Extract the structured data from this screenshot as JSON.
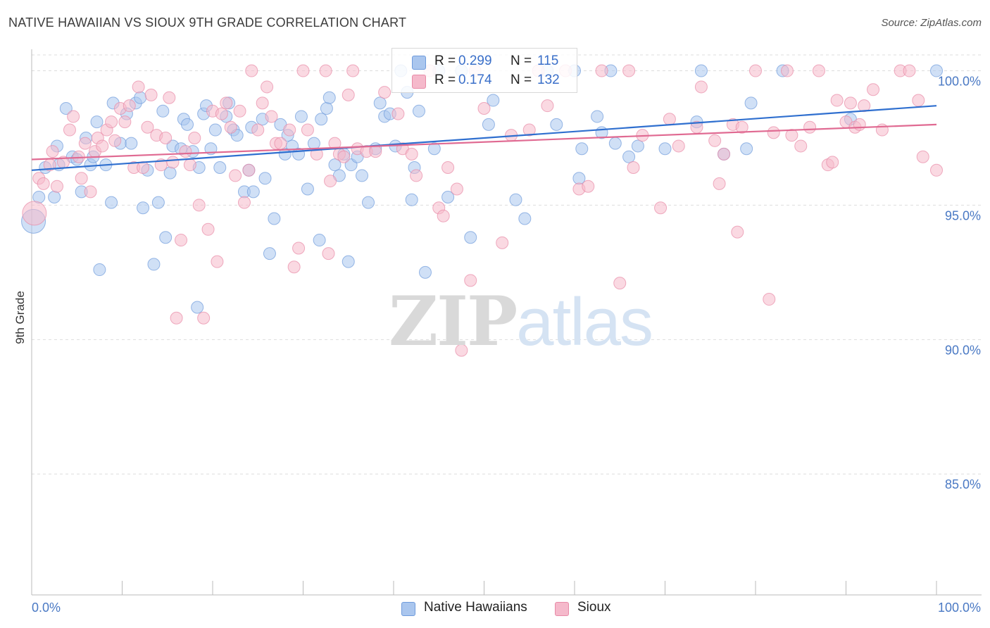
{
  "header": {
    "title": "NATIVE HAWAIIAN VS SIOUX 9TH GRADE CORRELATION CHART",
    "source": "Source: ZipAtlas.com"
  },
  "watermark": {
    "zip": "ZIP",
    "atlas": "atlas"
  },
  "legend": {
    "rows": [
      {
        "r_label": "R =",
        "r_value": "0.299",
        "n_label": "N =",
        "n_value": "115"
      },
      {
        "r_label": "R =",
        "r_value": "0.174",
        "n_label": "N =",
        "n_value": "132"
      }
    ]
  },
  "bottom_legend": {
    "items": [
      "Native Hawaiians",
      "Sioux"
    ]
  },
  "colors": {
    "blue_fill": "#aac6ee",
    "blue_stroke": "#6f9bdc",
    "blue_line": "#2f6fcf",
    "pink_fill": "#f5b9cb",
    "pink_stroke": "#e88aa7",
    "pink_line": "#e06a92",
    "grid": "#dddddd",
    "tick_text": "#4a79c4"
  },
  "chart_data": {
    "type": "scatter",
    "title": "NATIVE HAWAIIAN VS SIOUX 9TH GRADE CORRELATION CHART",
    "xlabel": "",
    "ylabel": "9th Grade",
    "xlim": [
      0,
      100
    ],
    "ylim": [
      80.5,
      100.8
    ],
    "x_tick_labels": [
      "0.0%",
      "100.0%"
    ],
    "y_ticks": [
      85,
      90,
      95,
      100
    ],
    "y_tick_labels": [
      "85.0%",
      "90.0%",
      "95.0%",
      "100.0%"
    ],
    "grid": true,
    "series": [
      {
        "name": "Native Hawaiians",
        "R": 0.299,
        "N": 115,
        "trend": [
          [
            0,
            96.3
          ],
          [
            100,
            98.7
          ]
        ],
        "points": [
          [
            0.2,
            94.4
          ],
          [
            0.8,
            95.3
          ],
          [
            1.5,
            96.4
          ],
          [
            2.5,
            95.3
          ],
          [
            2.8,
            97.2
          ],
          [
            3.0,
            96.5
          ],
          [
            3.8,
            98.6
          ],
          [
            4.5,
            96.8
          ],
          [
            5.0,
            96.7
          ],
          [
            5.5,
            95.5
          ],
          [
            6.0,
            97.5
          ],
          [
            6.5,
            96.5
          ],
          [
            6.8,
            96.8
          ],
          [
            7.2,
            98.1
          ],
          [
            7.5,
            92.6
          ],
          [
            8.2,
            96.5
          ],
          [
            8.8,
            95.1
          ],
          [
            9.0,
            98.8
          ],
          [
            9.8,
            97.3
          ],
          [
            10.5,
            98.4
          ],
          [
            11.0,
            97.3
          ],
          [
            11.5,
            98.8
          ],
          [
            12.0,
            99.0
          ],
          [
            12.3,
            94.9
          ],
          [
            12.8,
            96.3
          ],
          [
            13.5,
            92.8
          ],
          [
            14.0,
            95.1
          ],
          [
            14.5,
            98.5
          ],
          [
            14.8,
            93.8
          ],
          [
            15.3,
            96.2
          ],
          [
            15.6,
            97.2
          ],
          [
            16.5,
            97.1
          ],
          [
            16.8,
            98.2
          ],
          [
            17.2,
            98.0
          ],
          [
            17.8,
            97.0
          ],
          [
            18.3,
            91.2
          ],
          [
            18.5,
            96.4
          ],
          [
            19.0,
            98.4
          ],
          [
            19.3,
            98.7
          ],
          [
            19.8,
            97.1
          ],
          [
            20.3,
            97.8
          ],
          [
            20.8,
            96.4
          ],
          [
            21.5,
            98.3
          ],
          [
            21.8,
            98.8
          ],
          [
            22.3,
            97.8
          ],
          [
            22.7,
            97.6
          ],
          [
            23.5,
            95.5
          ],
          [
            24.0,
            96.3
          ],
          [
            24.3,
            97.9
          ],
          [
            24.5,
            95.5
          ],
          [
            25.5,
            98.2
          ],
          [
            25.8,
            96.0
          ],
          [
            26.3,
            93.2
          ],
          [
            26.8,
            94.5
          ],
          [
            27.5,
            98.0
          ],
          [
            28.0,
            96.9
          ],
          [
            28.3,
            97.6
          ],
          [
            28.8,
            97.2
          ],
          [
            29.5,
            96.9
          ],
          [
            29.8,
            98.3
          ],
          [
            30.5,
            95.6
          ],
          [
            31.2,
            97.3
          ],
          [
            31.8,
            93.7
          ],
          [
            32.0,
            98.2
          ],
          [
            32.6,
            98.6
          ],
          [
            32.9,
            99.0
          ],
          [
            33.5,
            96.5
          ],
          [
            34.0,
            96.1
          ],
          [
            34.5,
            96.9
          ],
          [
            35.0,
            92.9
          ],
          [
            35.3,
            96.5
          ],
          [
            36.0,
            96.8
          ],
          [
            36.5,
            96.1
          ],
          [
            37.2,
            95.1
          ],
          [
            38.0,
            97.1
          ],
          [
            38.5,
            98.8
          ],
          [
            39.0,
            98.3
          ],
          [
            39.6,
            98.4
          ],
          [
            40.2,
            97.2
          ],
          [
            40.8,
            100.0
          ],
          [
            41.5,
            99.2
          ],
          [
            42.0,
            95.2
          ],
          [
            42.3,
            96.4
          ],
          [
            42.8,
            98.5
          ],
          [
            43.5,
            92.5
          ],
          [
            44.5,
            97.1
          ],
          [
            45.0,
            100.0
          ],
          [
            46.0,
            95.3
          ],
          [
            47.5,
            100.0
          ],
          [
            48.5,
            93.8
          ],
          [
            50.5,
            98.0
          ],
          [
            51.0,
            98.9
          ],
          [
            53.5,
            95.2
          ],
          [
            54.5,
            94.5
          ],
          [
            57.0,
            100.0
          ],
          [
            58.0,
            98.0
          ],
          [
            60.0,
            100.0
          ],
          [
            60.5,
            96.0
          ],
          [
            60.8,
            97.1
          ],
          [
            62.5,
            98.3
          ],
          [
            63.0,
            97.7
          ],
          [
            64.0,
            100.0
          ],
          [
            64.5,
            97.3
          ],
          [
            66.0,
            96.8
          ],
          [
            67.0,
            97.2
          ],
          [
            70.0,
            97.1
          ],
          [
            73.5,
            98.1
          ],
          [
            74.0,
            100.0
          ],
          [
            76.5,
            96.9
          ],
          [
            79.0,
            97.1
          ],
          [
            79.5,
            98.8
          ],
          [
            83.0,
            100.0
          ],
          [
            90.5,
            98.2
          ],
          [
            100.0,
            100.0
          ]
        ]
      },
      {
        "name": "Sioux",
        "R": 0.174,
        "N": 132,
        "trend": [
          [
            0,
            96.7
          ],
          [
            100,
            98.0
          ]
        ],
        "points": [
          [
            0.3,
            94.7
          ],
          [
            0.8,
            96.0
          ],
          [
            1.3,
            95.8
          ],
          [
            2.0,
            96.5
          ],
          [
            2.3,
            97.0
          ],
          [
            2.8,
            95.7
          ],
          [
            3.5,
            96.6
          ],
          [
            4.2,
            97.8
          ],
          [
            4.6,
            98.3
          ],
          [
            5.2,
            96.8
          ],
          [
            5.5,
            96.0
          ],
          [
            5.9,
            97.3
          ],
          [
            6.5,
            95.5
          ],
          [
            7.0,
            97.0
          ],
          [
            7.3,
            97.5
          ],
          [
            7.8,
            97.2
          ],
          [
            8.3,
            97.8
          ],
          [
            8.8,
            98.1
          ],
          [
            9.2,
            97.4
          ],
          [
            9.8,
            98.6
          ],
          [
            10.3,
            98.1
          ],
          [
            10.8,
            98.7
          ],
          [
            11.3,
            96.4
          ],
          [
            11.8,
            99.4
          ],
          [
            12.3,
            96.4
          ],
          [
            12.8,
            97.9
          ],
          [
            13.2,
            99.1
          ],
          [
            13.8,
            97.6
          ],
          [
            14.3,
            96.5
          ],
          [
            14.8,
            97.5
          ],
          [
            15.2,
            99.0
          ],
          [
            15.6,
            96.6
          ],
          [
            16.0,
            90.8
          ],
          [
            16.5,
            93.7
          ],
          [
            17.0,
            97.0
          ],
          [
            17.5,
            96.5
          ],
          [
            18.0,
            97.5
          ],
          [
            18.5,
            95.0
          ],
          [
            19.0,
            90.8
          ],
          [
            19.5,
            94.1
          ],
          [
            20.0,
            98.5
          ],
          [
            20.5,
            92.9
          ],
          [
            21.0,
            98.4
          ],
          [
            21.5,
            98.8
          ],
          [
            22.0,
            97.9
          ],
          [
            22.5,
            96.1
          ],
          [
            23.0,
            98.5
          ],
          [
            23.5,
            95.1
          ],
          [
            24.0,
            96.3
          ],
          [
            24.3,
            100.0
          ],
          [
            25.0,
            97.8
          ],
          [
            25.5,
            98.8
          ],
          [
            26.0,
            99.4
          ],
          [
            26.5,
            98.3
          ],
          [
            27.0,
            97.3
          ],
          [
            27.5,
            97.3
          ],
          [
            28.5,
            97.8
          ],
          [
            29.0,
            92.7
          ],
          [
            29.5,
            93.4
          ],
          [
            30.0,
            100.0
          ],
          [
            30.5,
            97.8
          ],
          [
            31.5,
            96.9
          ],
          [
            32.5,
            100.0
          ],
          [
            32.8,
            93.2
          ],
          [
            33.0,
            95.9
          ],
          [
            33.5,
            97.3
          ],
          [
            34.0,
            96.9
          ],
          [
            34.5,
            96.8
          ],
          [
            35.0,
            99.1
          ],
          [
            35.5,
            100.0
          ],
          [
            36.0,
            97.1
          ],
          [
            37.0,
            97.0
          ],
          [
            38.0,
            97.0
          ],
          [
            39.0,
            99.2
          ],
          [
            40.5,
            98.4
          ],
          [
            41.0,
            97.1
          ],
          [
            42.0,
            96.9
          ],
          [
            42.5,
            96.1
          ],
          [
            44.0,
            100.0
          ],
          [
            45.0,
            94.9
          ],
          [
            45.5,
            94.6
          ],
          [
            46.0,
            96.4
          ],
          [
            47.0,
            95.6
          ],
          [
            47.5,
            89.6
          ],
          [
            48.5,
            92.2
          ],
          [
            49.0,
            100.0
          ],
          [
            50.0,
            98.6
          ],
          [
            52.0,
            93.6
          ],
          [
            53.0,
            97.6
          ],
          [
            55.0,
            97.8
          ],
          [
            56.0,
            100.0
          ],
          [
            57.0,
            98.7
          ],
          [
            59.0,
            100.0
          ],
          [
            60.5,
            95.6
          ],
          [
            61.5,
            95.7
          ],
          [
            63.0,
            100.0
          ],
          [
            65.0,
            92.1
          ],
          [
            66.0,
            100.0
          ],
          [
            66.5,
            96.4
          ],
          [
            67.5,
            97.6
          ],
          [
            69.5,
            94.9
          ],
          [
            70.5,
            98.2
          ],
          [
            71.5,
            97.2
          ],
          [
            73.5,
            97.9
          ],
          [
            74.0,
            99.4
          ],
          [
            75.5,
            97.4
          ],
          [
            76.0,
            95.8
          ],
          [
            76.5,
            96.9
          ],
          [
            77.5,
            98.0
          ],
          [
            78.0,
            94.0
          ],
          [
            78.5,
            97.9
          ],
          [
            80.0,
            100.0
          ],
          [
            81.5,
            91.5
          ],
          [
            82.0,
            97.7
          ],
          [
            83.5,
            100.0
          ],
          [
            84.0,
            97.6
          ],
          [
            85.0,
            97.2
          ],
          [
            86.0,
            97.9
          ],
          [
            87.0,
            100.0
          ],
          [
            88.0,
            96.5
          ],
          [
            88.5,
            96.6
          ],
          [
            89.0,
            98.9
          ],
          [
            90.0,
            98.1
          ],
          [
            90.5,
            98.8
          ],
          [
            91.0,
            97.9
          ],
          [
            91.5,
            98.0
          ],
          [
            92.0,
            98.7
          ],
          [
            93.0,
            99.3
          ],
          [
            94.0,
            97.8
          ],
          [
            96.0,
            100.0
          ],
          [
            97.0,
            100.0
          ],
          [
            98.0,
            98.9
          ],
          [
            98.5,
            96.8
          ],
          [
            100.0,
            96.3
          ]
        ]
      }
    ]
  }
}
